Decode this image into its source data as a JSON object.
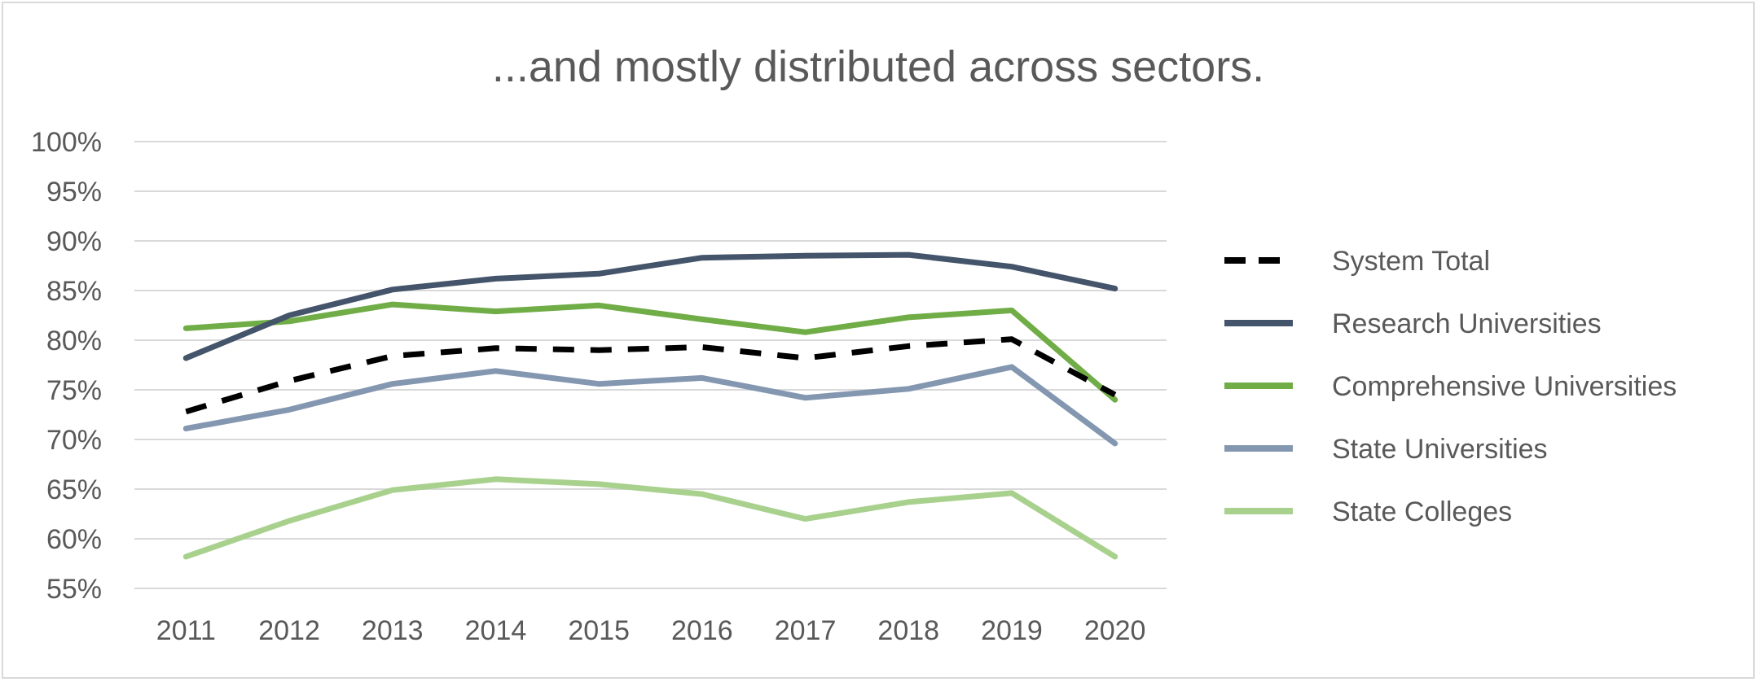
{
  "chart_data": {
    "type": "line",
    "title": "...and mostly distributed across sectors.",
    "xlabel": "",
    "ylabel": "",
    "x": [
      "2011",
      "2012",
      "2013",
      "2014",
      "2015",
      "2016",
      "2017",
      "2018",
      "2019",
      "2020"
    ],
    "ylim": [
      55,
      100
    ],
    "yticks": [
      55,
      60,
      65,
      70,
      75,
      80,
      85,
      90,
      95,
      100
    ],
    "ytick_labels": [
      "55%",
      "60%",
      "65%",
      "70%",
      "75%",
      "80%",
      "85%",
      "90%",
      "95%",
      "100%"
    ],
    "grid": true,
    "legend_position": "right",
    "series": [
      {
        "name": "System Total",
        "color": "#000000",
        "dashed": true,
        "values": [
          72.8,
          75.9,
          78.4,
          79.2,
          79.0,
          79.3,
          78.2,
          79.4,
          80.1,
          74.5
        ]
      },
      {
        "name": "Research Universities",
        "color": "#44546a",
        "dashed": false,
        "values": [
          78.2,
          82.5,
          85.1,
          86.2,
          86.7,
          88.3,
          88.5,
          88.6,
          87.4,
          85.2
        ]
      },
      {
        "name": "Comprehensive Universities",
        "color": "#70ad47",
        "dashed": false,
        "values": [
          81.2,
          81.9,
          83.6,
          82.9,
          83.5,
          82.1,
          80.8,
          82.3,
          83.0,
          74.0
        ]
      },
      {
        "name": "State Universities",
        "color": "#8497b0",
        "dashed": false,
        "values": [
          71.1,
          73.0,
          75.6,
          76.9,
          75.6,
          76.2,
          74.2,
          75.1,
          77.3,
          69.6
        ]
      },
      {
        "name": "State Colleges",
        "color": "#a9d18e",
        "dashed": false,
        "values": [
          58.2,
          61.8,
          64.9,
          66.0,
          65.5,
          64.5,
          62.0,
          63.7,
          64.6,
          58.2
        ]
      }
    ]
  }
}
